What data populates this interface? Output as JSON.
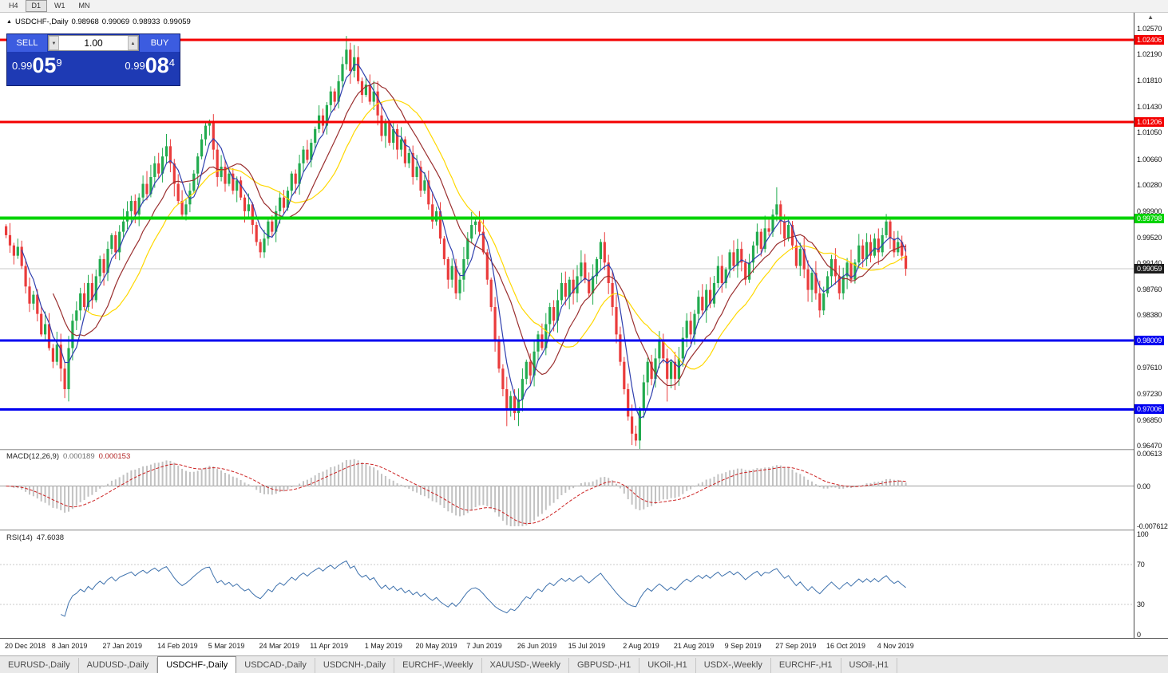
{
  "toolbar": {
    "timeframes": [
      {
        "label": "H4",
        "active": false
      },
      {
        "label": "D1",
        "active": true
      },
      {
        "label": "W1",
        "active": false
      },
      {
        "label": "MN",
        "active": false
      }
    ],
    "overflow_icon": "▲"
  },
  "chart_header": {
    "expand_icon": "▲",
    "symbol_title": "USDCHF-,Daily",
    "ohlc": {
      "open": "0.98968",
      "high": "0.99069",
      "low": "0.98933",
      "close": "0.99059"
    }
  },
  "trade_panel": {
    "sell_label": "SELL",
    "buy_label": "BUY",
    "volume": "1.00",
    "vol_down_icon": "▼",
    "vol_up_icon": "▲",
    "bid": {
      "prefix": "0.99",
      "big": "05",
      "sup": "9"
    },
    "ask": {
      "prefix": "0.99",
      "big": "08",
      "sup": "4"
    },
    "colors": {
      "panel": "#1e3ab4",
      "button": "#3c5ce0"
    }
  },
  "macd_panel": {
    "label": "MACD(12,26,9)",
    "main_value": "0.000189",
    "signal_value": "0.000153",
    "axis": [
      "0.00613",
      "0.00",
      "-0.007612"
    ]
  },
  "rsi_panel": {
    "label": "RSI(14)",
    "value": "47.6038",
    "axis": [
      "100",
      "70",
      "30",
      "0"
    ],
    "levels": [
      70,
      30
    ]
  },
  "tabs": [
    {
      "label": "EURUSD-,Daily",
      "active": false
    },
    {
      "label": "AUDUSD-,Daily",
      "active": false
    },
    {
      "label": "USDCHF-,Daily",
      "active": true
    },
    {
      "label": "USDCAD-,Daily",
      "active": false
    },
    {
      "label": "USDCNH-,Daily",
      "active": false
    },
    {
      "label": "EURCHF-,Weekly",
      "active": false
    },
    {
      "label": "XAUUSD-,Weekly",
      "active": false
    },
    {
      "label": "GBPUSD-,H1",
      "active": false
    },
    {
      "label": "UKOil-,H1",
      "active": false
    },
    {
      "label": "USDX-,Weekly",
      "active": false
    },
    {
      "label": "EURCHF-,H1",
      "active": false
    },
    {
      "label": "USOil-,H1",
      "active": false
    }
  ],
  "chart_data": {
    "type": "candlestick",
    "symbol": "USDCHF",
    "timeframe": "Daily",
    "price_axis": {
      "min": 0.9645,
      "max": 1.0259,
      "ticks": [
        "1.02570",
        "1.02190",
        "1.01810",
        "1.01430",
        "1.01050",
        "1.00660",
        "1.00280",
        "0.99900",
        "0.99520",
        "0.99140",
        "0.98760",
        "0.98380",
        "0.97610",
        "0.97230",
        "0.96850",
        "0.96470"
      ]
    },
    "hlines": [
      {
        "value": 1.02406,
        "label": "1.02406",
        "color": "#f40000",
        "width": 3
      },
      {
        "value": 1.01206,
        "label": "1.01206",
        "color": "#f40000",
        "width": 3
      },
      {
        "value": 0.99798,
        "label": "0.99798",
        "color": "#00d300",
        "width": 4
      },
      {
        "value": 0.98009,
        "label": "0.98009",
        "color": "#0000f0",
        "width": 3
      },
      {
        "value": 0.97006,
        "label": "0.97006",
        "color": "#0000f0",
        "width": 3
      }
    ],
    "current_price": {
      "value": 0.99059,
      "label": "0.99059"
    },
    "colors": {
      "up": "#22ab4f",
      "down": "#ea3b3b",
      "macd_hist": "#c2c2c2",
      "macd_signal": "#cc2222",
      "rsi": "#3f72ad",
      "ma_fast": "#2f3fae",
      "ma_mid": "#9a2f2f",
      "ma_slow": "#ffd800"
    },
    "moving_averages": [
      {
        "period": 5,
        "color": "#2f3fae"
      },
      {
        "period": 13,
        "color": "#9a2f2f"
      },
      {
        "period": 21,
        "color": "#ffd800"
      }
    ],
    "macd": {
      "fast": 12,
      "slow": 26,
      "signal": 9,
      "range": [
        -0.007612,
        0.00613
      ]
    },
    "rsi": {
      "period": 14,
      "range": [
        0,
        100
      ]
    },
    "date_labels": [
      {
        "label": "20 Dec 2018",
        "index": 0
      },
      {
        "label": "8 Jan 2019",
        "index": 12
      },
      {
        "label": "27 Jan 2019",
        "index": 25
      },
      {
        "label": "14 Feb 2019",
        "index": 39
      },
      {
        "label": "5 Mar 2019",
        "index": 52
      },
      {
        "label": "24 Mar 2019",
        "index": 65
      },
      {
        "label": "11 Apr 2019",
        "index": 78
      },
      {
        "label": "1 May 2019",
        "index": 92
      },
      {
        "label": "20 May 2019",
        "index": 105
      },
      {
        "label": "7 Jun 2019",
        "index": 118
      },
      {
        "label": "26 Jun 2019",
        "index": 131
      },
      {
        "label": "15 Jul 2019",
        "index": 144
      },
      {
        "label": "2 Aug 2019",
        "index": 158
      },
      {
        "label": "21 Aug 2019",
        "index": 171
      },
      {
        "label": "9 Sep 2019",
        "index": 184
      },
      {
        "label": "27 Sep 2019",
        "index": 197
      },
      {
        "label": "16 Oct 2019",
        "index": 210
      },
      {
        "label": "4 Nov 2019",
        "index": 223
      }
    ],
    "candles": {
      "first_open": 0.9968,
      "closes": [
        0.9955,
        0.994,
        0.9925,
        0.9938,
        0.991,
        0.988,
        0.9855,
        0.9868,
        0.984,
        0.981,
        0.9825,
        0.979,
        0.977,
        0.9795,
        0.976,
        0.973,
        0.979,
        0.983,
        0.9845,
        0.987,
        0.985,
        0.9885,
        0.986,
        0.9895,
        0.992,
        0.99,
        0.9935,
        0.9955,
        0.993,
        0.996,
        0.9975,
        0.999,
        1.0005,
        0.9985,
        1.001,
        1.003,
        1.0015,
        1.004,
        1.006,
        1.0045,
        1.007,
        1.0085,
        1.006,
        1.003,
        1.0005,
        0.9985,
        1.0,
        1.002,
        1.0045,
        1.007,
        1.0095,
        1.0115,
        1.012,
        1.008,
        1.004,
        1.0055,
        1.003,
        1.0045,
        1.002,
        1.0035,
        1.001,
        0.999,
        1.0,
        0.997,
        0.9945,
        0.993,
        0.995,
        0.9975,
        0.996,
        0.999,
        1.001,
        0.9995,
        1.002,
        1.0045,
        1.003,
        1.006,
        1.008,
        1.0065,
        1.009,
        1.011,
        1.013,
        1.0115,
        1.0145,
        1.0165,
        1.015,
        1.018,
        1.0205,
        1.0226,
        1.0195,
        1.0215,
        1.018,
        1.016,
        1.0175,
        1.015,
        1.0165,
        1.013,
        1.01,
        1.012,
        1.009,
        1.011,
        1.008,
        1.0095,
        1.006,
        1.0075,
        1.004,
        1.0055,
        1.002,
        1.0035,
        1.0,
        0.9975,
        0.999,
        0.995,
        0.992,
        0.989,
        0.991,
        0.987,
        0.989,
        0.992,
        0.995,
        0.997,
        0.9975,
        0.996,
        0.993,
        0.989,
        0.985,
        0.98,
        0.976,
        0.973,
        0.97,
        0.972,
        0.9695,
        0.9715,
        0.9745,
        0.977,
        0.975,
        0.9785,
        0.981,
        0.979,
        0.9825,
        0.985,
        0.983,
        0.986,
        0.9885,
        0.9865,
        0.989,
        0.987,
        0.9895,
        0.9915,
        0.989,
        0.987,
        0.9895,
        0.992,
        0.9945,
        0.9915,
        0.9885,
        0.985,
        0.981,
        0.977,
        0.973,
        0.969,
        0.9665,
        0.9655,
        0.97,
        0.974,
        0.977,
        0.9745,
        0.9775,
        0.98,
        0.9775,
        0.9745,
        0.977,
        0.9745,
        0.9775,
        0.9805,
        0.983,
        0.981,
        0.984,
        0.9865,
        0.9845,
        0.9875,
        0.9855,
        0.9885,
        0.991,
        0.9885,
        0.9905,
        0.993,
        0.991,
        0.9935,
        0.9915,
        0.989,
        0.9915,
        0.994,
        0.996,
        0.9935,
        0.9965,
        0.996,
        0.9985,
        1.0,
        0.9975,
        0.995,
        0.997,
        0.994,
        0.991,
        0.9935,
        0.9905,
        0.9875,
        0.99,
        0.987,
        0.9845,
        0.987,
        0.9895,
        0.992,
        0.9895,
        0.987,
        0.9895,
        0.9915,
        0.989,
        0.9915,
        0.994,
        0.992,
        0.9945,
        0.9925,
        0.995,
        0.993,
        0.9955,
        0.9975,
        0.995,
        0.993,
        0.9945,
        0.9925,
        0.99059
      ],
      "wick_overrides": {
        "15": {
          "low": 0.9717
        },
        "52": {
          "high": 1.0124
        },
        "87": {
          "high": 1.0246
        },
        "128": {
          "low": 0.9676
        },
        "161": {
          "low": 0.9647
        },
        "169": {
          "low": 0.9712
        },
        "197": {
          "high": 1.0025
        }
      }
    }
  }
}
